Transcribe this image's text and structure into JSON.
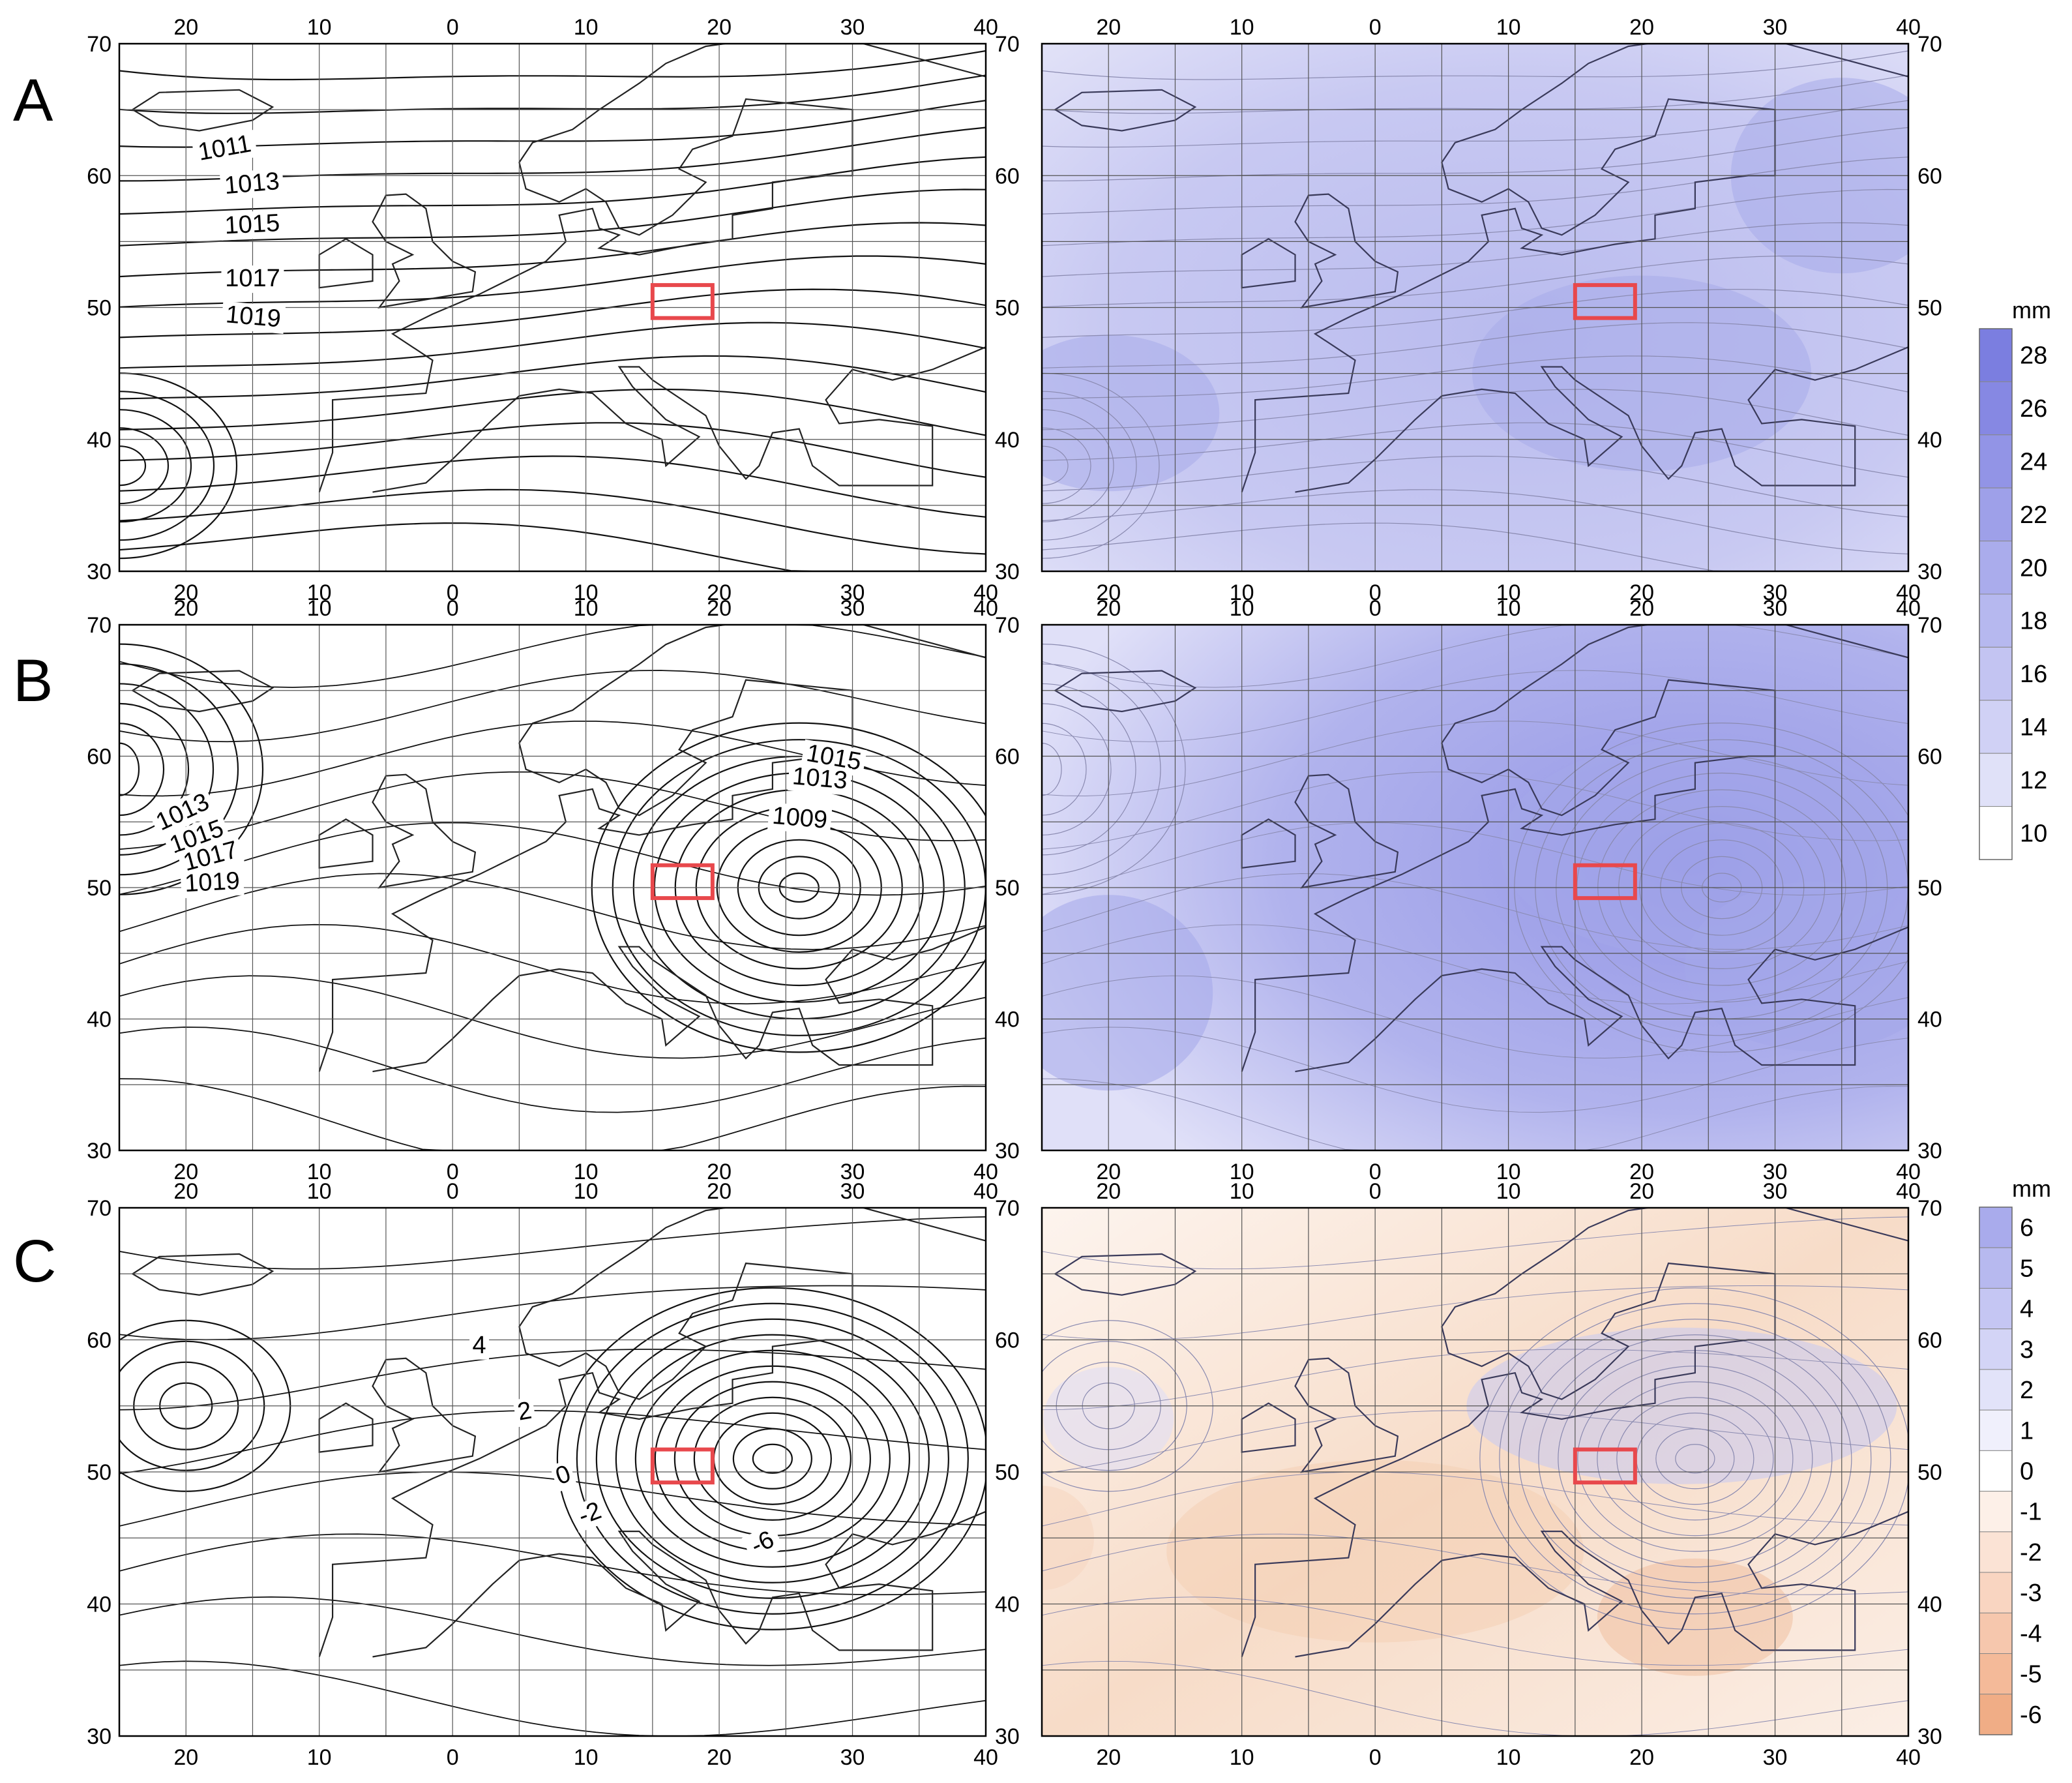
{
  "rows": [
    {
      "letter": "A"
    },
    {
      "letter": "B"
    },
    {
      "letter": "C"
    }
  ],
  "axes": {
    "lon_ticks": [
      "20",
      "10",
      "0",
      "10",
      "20",
      "30",
      "40"
    ],
    "lat_ticks": [
      "70",
      "60",
      "50",
      "40",
      "30"
    ]
  },
  "isobar_labels": {
    "A": [
      "1011",
      "1013",
      "1015",
      "1017",
      "1019"
    ],
    "B": [
      "1013",
      "1015",
      "1017",
      "1019",
      "1015",
      "1013",
      "1009"
    ],
    "C": [
      "4",
      "2",
      "0",
      "-2",
      "-6"
    ]
  },
  "colorbars": [
    {
      "unit": "mm",
      "labels": [
        "28",
        "26",
        "24",
        "22",
        "20",
        "18",
        "16",
        "14",
        "12",
        "10"
      ],
      "colors": [
        "#7b7ee0",
        "#8688e3",
        "#9294e6",
        "#9ea0e9",
        "#aaacec",
        "#b6b8ef",
        "#c3c4f2",
        "#d0d1f5",
        "#e0e1f8",
        "#ffffff"
      ]
    },
    {
      "unit": "mm",
      "labels": [
        "6",
        "5",
        "4",
        "3",
        "2",
        "1",
        "0",
        "-1",
        "-2",
        "-3",
        "-4",
        "-5",
        "-6"
      ],
      "colors": [
        "#a9abec",
        "#b7b9ef",
        "#c5c6f3",
        "#d3d4f6",
        "#e2e3f9",
        "#f0f0fc",
        "#ffffff",
        "#fdf0e8",
        "#fbe3d5",
        "#f9d5c1",
        "#f6c7ad",
        "#f4ba99",
        "#f0ad86"
      ]
    }
  ],
  "highlight_color": "#e8484c",
  "map_fill": {
    "A": "#a8abea",
    "B": "#a4a7e9",
    "C": "#f8e6da"
  }
}
